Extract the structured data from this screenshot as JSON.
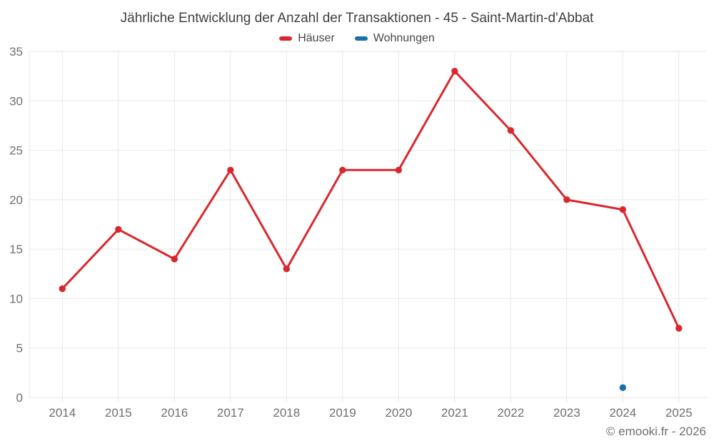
{
  "chart_data": {
    "type": "line",
    "title": "Jährliche Entwicklung der Anzahl der Transaktionen - 45 - Saint-Martin-d'Abbat",
    "categories": [
      "2014",
      "2015",
      "2016",
      "2017",
      "2018",
      "2019",
      "2020",
      "2021",
      "2022",
      "2023",
      "2024",
      "2025"
    ],
    "series": [
      {
        "name": "Häuser",
        "color": "#d8282e",
        "values": [
          11,
          17,
          14,
          23,
          13,
          23,
          23,
          33,
          27,
          20,
          19,
          7
        ]
      },
      {
        "name": "Wohnungen",
        "color": "#1a6fa8",
        "values": [
          null,
          null,
          null,
          null,
          null,
          null,
          null,
          null,
          null,
          null,
          1,
          null
        ]
      }
    ],
    "ylim": [
      0,
      35
    ],
    "yticks": [
      0,
      5,
      10,
      15,
      20,
      25,
      30,
      35
    ],
    "grid": "on",
    "legend_position": "top"
  },
  "footer": {
    "copyright": "© emooki.fr - 2026"
  },
  "colors": {
    "background": "#ffffff",
    "grid": "#e7e7e7",
    "tick_label": "#6f6f6f",
    "title_text": "#3f3f3f",
    "legend_text": "#474747",
    "haeuser_red": "#d8282e",
    "wohnungen_blue": "#1a6fa8"
  }
}
